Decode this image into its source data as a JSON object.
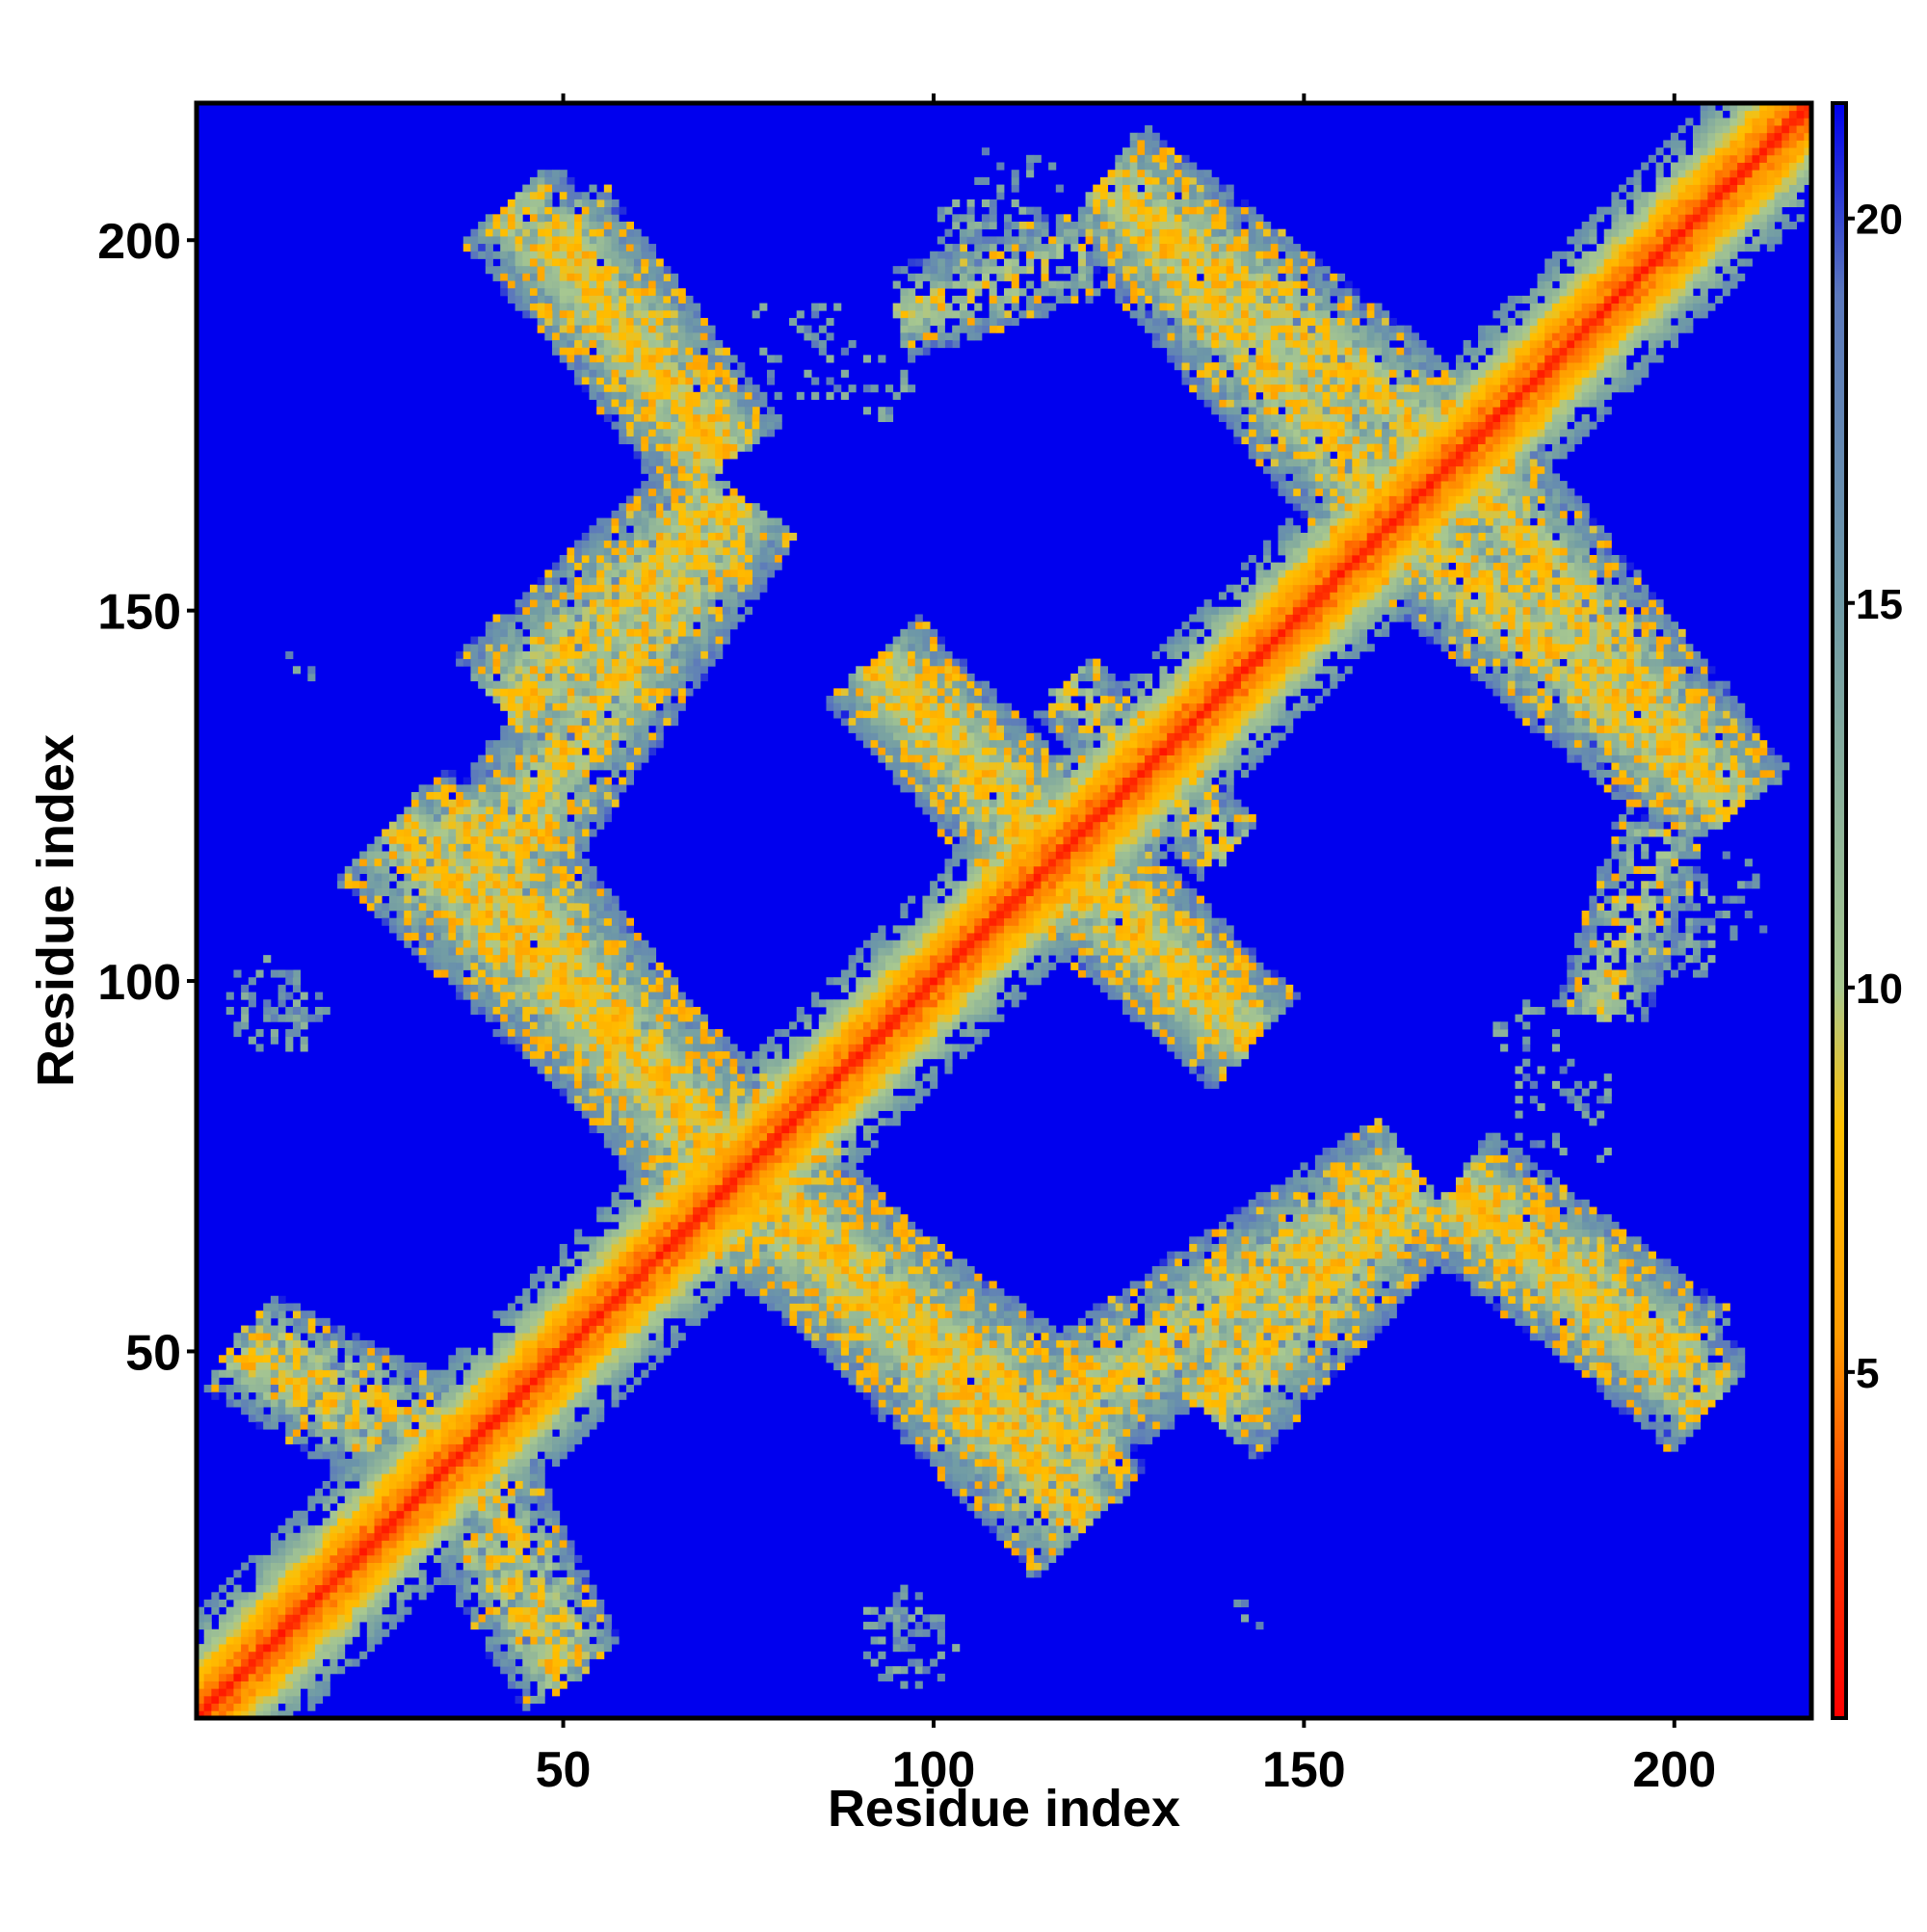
{
  "chart_data": {
    "type": "heatmap",
    "title": "",
    "xlabel": "Residue index",
    "ylabel": "Residue index",
    "xlim": [
      1,
      218
    ],
    "ylim": [
      1,
      218
    ],
    "x_ticks": [
      50,
      100,
      150,
      200
    ],
    "y_ticks": [
      50,
      100,
      150,
      200
    ],
    "grid": false,
    "colorbar": {
      "ticks": [
        5,
        10,
        15,
        20
      ],
      "range": [
        0.5,
        21.5
      ],
      "position": "right",
      "colors": [
        "#ff0000",
        "#ff3a00",
        "#ff9c00",
        "#ffc000",
        "#a8c890",
        "#6f9aa6",
        "#5b78bc",
        "#0000ee"
      ],
      "stops": [
        0,
        3,
        5.5,
        8.2,
        10,
        15,
        19,
        21.5
      ]
    },
    "background_color": "#0000ee",
    "diagonal": {
      "from": 1,
      "to": 218,
      "max_offset": 14
    },
    "contact_bands": [
      {
        "x0": 43,
        "y0": 205,
        "x1": 72,
        "y1": 170,
        "width": 8,
        "density": 0.45
      },
      {
        "x0": 74,
        "y0": 165,
        "x1": 42,
        "y1": 118,
        "width": 9,
        "density": 0.5
      },
      {
        "x0": 27,
        "y0": 121,
        "x1": 75,
        "y1": 75,
        "width": 10,
        "density": 0.55
      },
      {
        "x0": 72,
        "y0": 73,
        "x1": 123,
        "y1": 35,
        "width": 10,
        "density": 0.55
      },
      {
        "x0": 137,
        "y0": 42,
        "x1": 165,
        "y1": 72,
        "width": 9,
        "density": 0.5
      },
      {
        "x0": 170,
        "y0": 72,
        "x1": 202,
        "y1": 48,
        "width": 9,
        "density": 0.5
      },
      {
        "x0": 92,
        "y0": 143,
        "x1": 121,
        "y1": 110,
        "width": 8,
        "density": 0.5
      },
      {
        "x0": 118,
        "y0": 118,
        "x1": 143,
        "y1": 92,
        "width": 8,
        "density": 0.5
      },
      {
        "x0": 123,
        "y0": 208,
        "x1": 168,
        "y1": 173,
        "width": 9,
        "density": 0.5
      },
      {
        "x0": 165,
        "y0": 160,
        "x1": 203,
        "y1": 128,
        "width": 9,
        "density": 0.5
      },
      {
        "x0": 5,
        "y0": 50,
        "x1": 25,
        "y1": 38,
        "width": 6,
        "density": 0.35
      },
      {
        "x0": 38,
        "y0": 37,
        "x1": 52,
        "y1": 8,
        "width": 6,
        "density": 0.35
      },
      {
        "x0": 118,
        "y0": 140,
        "x1": 128,
        "y1": 128,
        "width": 5,
        "density": 0.35
      },
      {
        "x0": 198,
        "y0": 120,
        "x1": 190,
        "y1": 95,
        "width": 6,
        "density": 0.3
      }
    ],
    "scatter_patches": [
      {
        "cx": 10,
        "cy": 97,
        "r": 6,
        "density": 0.3
      },
      {
        "cx": 96,
        "cy": 12,
        "r": 6,
        "density": 0.3
      },
      {
        "cx": 105,
        "cy": 200,
        "r": 6,
        "density": 0.25
      },
      {
        "cx": 92,
        "cy": 180,
        "r": 5,
        "density": 0.25
      },
      {
        "cx": 185,
        "cy": 82,
        "r": 8,
        "density": 0.2
      },
      {
        "cx": 205,
        "cy": 110,
        "r": 8,
        "density": 0.25
      },
      {
        "cx": 14,
        "cy": 142,
        "r": 3,
        "density": 0.2
      }
    ]
  }
}
